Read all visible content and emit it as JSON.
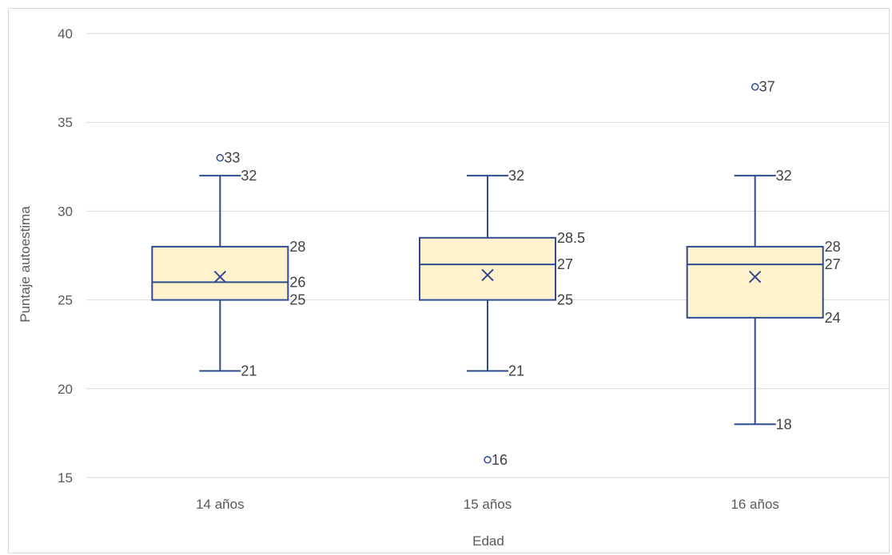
{
  "chart_data": {
    "type": "box",
    "title": "",
    "xlabel": "Edad",
    "ylabel": "Puntaje autoestima",
    "ylim": [
      15,
      40
    ],
    "yticks": [
      "15",
      "20",
      "25",
      "30",
      "35",
      "40"
    ],
    "grid": true,
    "legend": "none",
    "colors": {
      "box_fill": "#fff2cc",
      "box_stroke": "#2f4b8f",
      "grid": "#d9d9d9",
      "text": "#595959"
    },
    "categories": [
      "14 años",
      "15 años",
      "16 años"
    ],
    "boxes": [
      {
        "category": "14 años",
        "whisker_min": 21,
        "q1": 25,
        "median": 26,
        "q3": 28,
        "whisker_max": 32,
        "mean": 26.3,
        "outliers": [
          33
        ],
        "labels": {
          "whisker_min": "21",
          "q1": "25",
          "median": "26",
          "q3": "28",
          "whisker_max": "32",
          "outliers": [
            "33"
          ]
        }
      },
      {
        "category": "15 años",
        "whisker_min": 21,
        "q1": 25,
        "median": 27,
        "q3": 28.5,
        "whisker_max": 32,
        "mean": 26.4,
        "outliers": [
          16
        ],
        "labels": {
          "whisker_min": "21",
          "q1": "25",
          "median": "27",
          "q3": "28.5",
          "whisker_max": "32",
          "outliers": [
            "16"
          ]
        }
      },
      {
        "category": "16 años",
        "whisker_min": 18,
        "q1": 24,
        "median": 27,
        "q3": 28,
        "whisker_max": 32,
        "mean": 26.3,
        "outliers": [
          37
        ],
        "labels": {
          "whisker_min": "18",
          "q1": "24",
          "median": "27",
          "q3": "28",
          "whisker_max": "32",
          "outliers": [
            "37"
          ]
        }
      }
    ]
  }
}
